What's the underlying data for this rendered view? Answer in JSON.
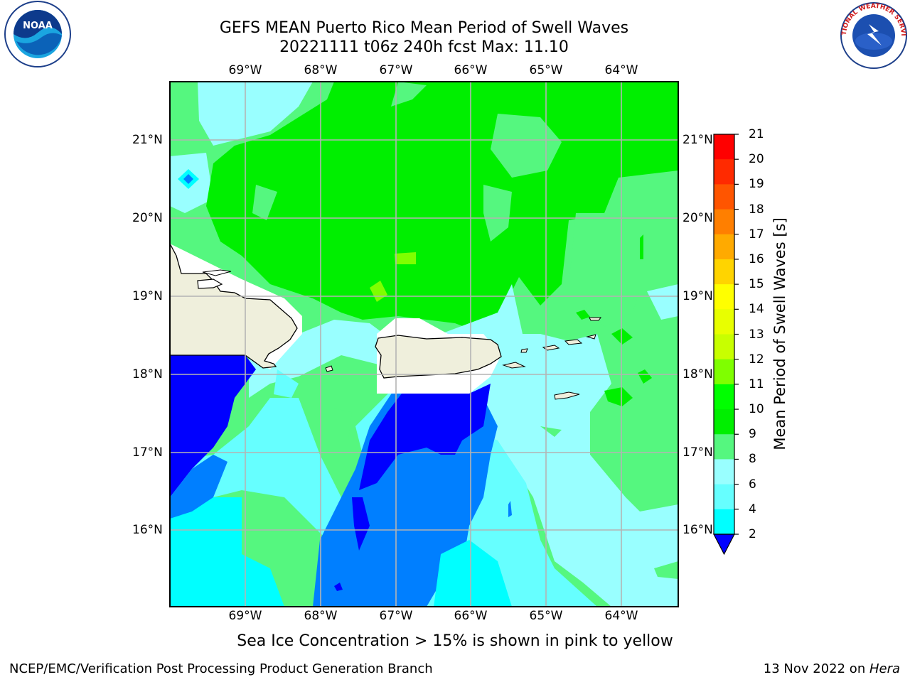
{
  "title_line1": "GEFS MEAN Puerto Rico Mean Period of Swell Waves",
  "title_line2": "20221111 t06z 240h fcst   Max: 11.10",
  "lon_labels": [
    "69°W",
    "68°W",
    "67°W",
    "66°W",
    "65°W",
    "64°W"
  ],
  "lat_labels": [
    "21°N",
    "20°N",
    "19°N",
    "18°N",
    "17°N",
    "16°N"
  ],
  "colorbar": {
    "title": "Mean Period of Swell Waves [s]",
    "ticks": [
      "21",
      "20",
      "19",
      "18",
      "17",
      "16",
      "15",
      "14",
      "13",
      "12",
      "11",
      "10",
      "9",
      "8",
      "6",
      "4",
      "2"
    ],
    "colors": [
      "#ff0000",
      "#ff2a00",
      "#ff5500",
      "#ff7f00",
      "#ffaa00",
      "#ffd400",
      "#ffff00",
      "#e8ff00",
      "#c8ff00",
      "#7fff00",
      "#00ff00",
      "#00ef00",
      "#55f77f",
      "#99ffff",
      "#66ffff",
      "#00ffff",
      "#00bfff",
      "#007fff",
      "#0000ff"
    ]
  },
  "note": "Sea Ice Concentration > 15% is shown in pink to yellow",
  "footer_left": "NCEP/EMC/Verification Post Processing Product Generation Branch",
  "footer_right_prefix": "13 Nov 2022 on ",
  "footer_right_host": "Hera",
  "logos": {
    "left": "NOAA",
    "right": "NATIONAL WEATHER SERVICE"
  }
}
